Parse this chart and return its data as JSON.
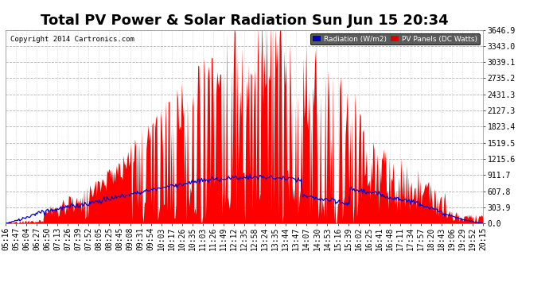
{
  "title": "Total PV Power & Solar Radiation Sun Jun 15 20:34",
  "copyright": "Copyright 2014 Cartronics.com",
  "bg_color": "#ffffff",
  "plot_bg_color": "#ffffff",
  "grid_color": "#aaaaaa",
  "y_max": 3646.9,
  "y_ticks": [
    0.0,
    303.9,
    607.8,
    911.7,
    1215.6,
    1519.5,
    1823.4,
    2127.3,
    2431.3,
    2735.2,
    3039.1,
    3343.0,
    3646.9
  ],
  "x_tick_labels": [
    "05:16",
    "05:47",
    "06:04",
    "06:27",
    "06:50",
    "07:13",
    "07:26",
    "07:39",
    "07:52",
    "08:05",
    "08:25",
    "08:45",
    "09:08",
    "09:31",
    "09:54",
    "10:03",
    "10:17",
    "10:26",
    "10:35",
    "11:03",
    "11:26",
    "11:49",
    "12:12",
    "12:35",
    "12:58",
    "13:24",
    "13:35",
    "13:44",
    "13:47",
    "14:07",
    "14:30",
    "14:53",
    "15:16",
    "15:39",
    "16:02",
    "16:25",
    "16:41",
    "16:48",
    "17:11",
    "17:34",
    "17:57",
    "18:20",
    "18:43",
    "19:06",
    "19:29",
    "19:52",
    "20:15"
  ],
  "legend_radiation_color": "#0000bb",
  "legend_pv_color": "#dd0000",
  "legend_radiation_label": "Radiation (W/m2)",
  "legend_pv_label": "PV Panels (DC Watts)",
  "title_fontsize": 13,
  "axis_fontsize": 7
}
